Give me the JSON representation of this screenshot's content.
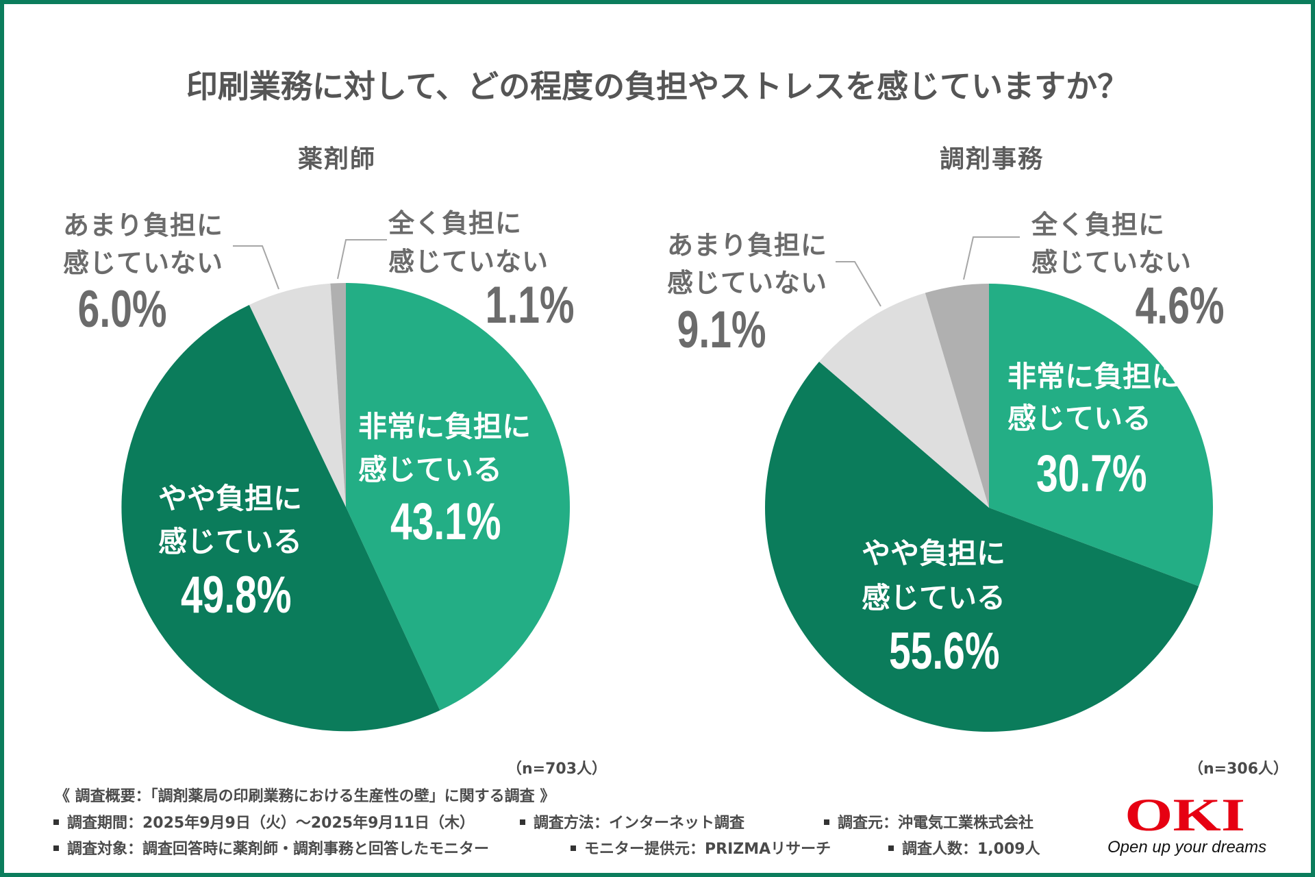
{
  "page": {
    "border_color": "#0b7d5c"
  },
  "header": {
    "title": "印刷業務に対して、どの程度の負担やストレスを感じていますか？"
  },
  "chart_data": [
    {
      "type": "pie",
      "title": "薬剤師",
      "sample_size": "（n=703人）",
      "slices": [
        {
          "key": "very",
          "label": "非常に負担に感じている",
          "label_lines": [
            "非常に負担に",
            "感じている"
          ],
          "value": 43.1,
          "value_label": "43.1%",
          "color": "#23ae85"
        },
        {
          "key": "somewhat",
          "label": "やや負担に感じている",
          "label_lines": [
            "やや負担に",
            "感じている"
          ],
          "value": 49.8,
          "value_label": "49.8%",
          "color": "#0b7c5b"
        },
        {
          "key": "not-much",
          "label": "あまり負担に感じていない",
          "label_lines": [
            "あまり負担に",
            "感じていない"
          ],
          "value": 6.0,
          "value_label": "6.0%",
          "color": "#dedede"
        },
        {
          "key": "not-at-all",
          "label": "全く負担に感じていない",
          "label_lines": [
            "全く負担に",
            "感じていない"
          ],
          "value": 1.1,
          "value_label": "1.1%",
          "color": "#b0b0b0"
        }
      ]
    },
    {
      "type": "pie",
      "title": "調剤事務",
      "sample_size": "（n=306人）",
      "slices": [
        {
          "key": "very",
          "label": "非常に負担に感じている",
          "label_lines": [
            "非常に負担に",
            "感じている"
          ],
          "value": 30.7,
          "value_label": "30.7%",
          "color": "#23ae85"
        },
        {
          "key": "somewhat",
          "label": "やや負担に感じている",
          "label_lines": [
            "やや負担に",
            "感じている"
          ],
          "value": 55.6,
          "value_label": "55.6%",
          "color": "#0b7c5b"
        },
        {
          "key": "not-much",
          "label": "あまり負担に感じていない",
          "label_lines": [
            "あまり負担に",
            "感じていない"
          ],
          "value": 9.1,
          "value_label": "9.1%",
          "color": "#dedede"
        },
        {
          "key": "not-at-all",
          "label": "全く負担に感じていない",
          "label_lines": [
            "全く負担に",
            "感じていない"
          ],
          "value": 4.6,
          "value_label": "4.6%",
          "color": "#b0b0b0"
        }
      ]
    }
  ],
  "footer": {
    "survey_title": "《 調査概要：「調剤薬局の印刷業務における生産性の壁」に関する調査 》",
    "items": [
      "調査期間：2025年9月9日（火）～2025年9月11日（木）",
      "調査方法：インターネット調査",
      "調査元：沖電気工業株式会社",
      "調査対象：調査回答時に薬剤師・調剤事務と回答したモニター",
      "モニター提供元：PRIZMAリサーチ",
      "調査人数：1,009人"
    ]
  },
  "logo": {
    "name": "OKI",
    "tagline": "Open up your dreams",
    "color": "#e60012"
  }
}
